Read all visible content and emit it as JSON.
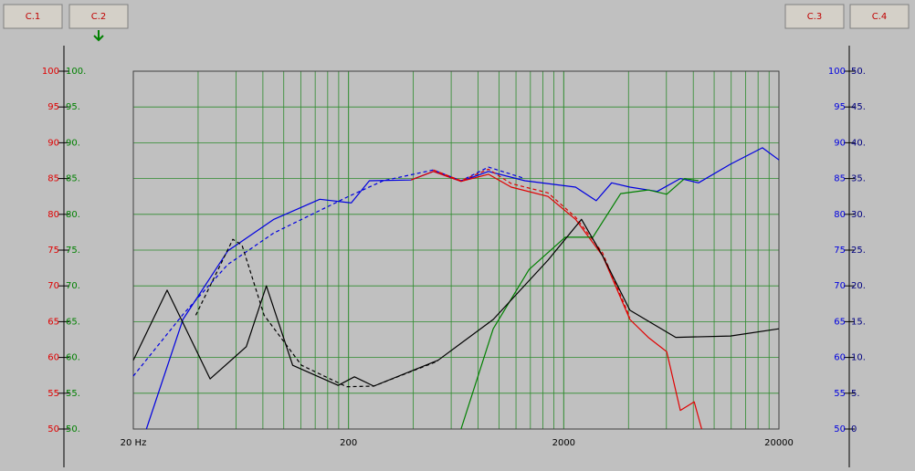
{
  "buttons": [
    "C.1",
    "C.2",
    "C.3",
    "C.4"
  ],
  "chart_data": {
    "type": "line",
    "xscale": "log",
    "grid": true,
    "xlim": [
      20,
      20000
    ],
    "xticks": [
      {
        "value": 20,
        "label": "20 Hz"
      },
      200,
      2000,
      20000
    ],
    "xgrid": [
      40,
      60,
      80,
      100,
      120,
      140,
      160,
      180,
      400,
      600,
      800,
      1000,
      1200,
      1400,
      1600,
      1800,
      4000,
      6000,
      8000,
      10000,
      12000,
      14000,
      16000,
      18000
    ],
    "ylim": [
      50,
      100
    ],
    "yticks": [
      50,
      55,
      60,
      65,
      70,
      75,
      80,
      85,
      90,
      95,
      100
    ],
    "yticks_alt": [
      {
        "value": 50,
        "label": "50."
      },
      {
        "value": 55,
        "label": "55."
      },
      {
        "value": 60,
        "label": "60."
      },
      {
        "value": 65,
        "label": "65."
      },
      {
        "value": 70,
        "label": "70."
      },
      {
        "value": 75,
        "label": "75."
      },
      {
        "value": 80,
        "label": "80."
      },
      {
        "value": 85,
        "label": "85."
      },
      {
        "value": 90,
        "label": "90."
      },
      {
        "value": 95,
        "label": "95."
      },
      {
        "value": 100,
        "label": "100."
      }
    ],
    "yticks_right": [
      50,
      55,
      60,
      65,
      70,
      75,
      80,
      85,
      90,
      95,
      100
    ],
    "y2lim": [
      0,
      50
    ],
    "y2ticks": [
      0,
      {
        "value": 5,
        "label": "5."
      },
      {
        "value": 10,
        "label": "10."
      },
      {
        "value": 15,
        "label": "15."
      },
      {
        "value": 20,
        "label": "20."
      },
      {
        "value": 25,
        "label": "25."
      },
      {
        "value": 30,
        "label": "30."
      },
      {
        "value": 35,
        "label": "35."
      },
      {
        "value": 40,
        "label": "40."
      },
      {
        "value": 45,
        "label": "45."
      },
      {
        "value": 50,
        "label": "50."
      }
    ],
    "series": [
      {
        "color": "#0000e0",
        "dashed": false,
        "x": [
          23,
          34,
          55,
          90,
          147,
          206,
          250,
          390,
          496,
          667,
          894,
          1320,
          2270,
          2830,
          3340,
          4060,
          5440,
          6960,
          8460,
          11900,
          16750,
          20000
        ],
        "values": [
          50,
          65.3,
          74.9,
          79.3,
          82.1,
          81.6,
          84.7,
          84.8,
          86,
          84.6,
          86,
          84.7,
          83.8,
          81.9,
          84.4,
          83.8,
          83.2,
          85,
          84.4,
          87,
          89.3,
          87.6
        ]
      },
      {
        "color": "#0000e0",
        "dashed": true,
        "x": [
          20,
          34,
          55,
          90,
          200,
          290,
          496,
          667,
          894,
          1320
        ],
        "values": [
          57.4,
          66,
          73,
          77.4,
          82.5,
          84.7,
          86.2,
          84.7,
          86.6,
          85
        ]
      },
      {
        "color": "#e00000",
        "dashed": false,
        "x": [
          390,
          496,
          667,
          894,
          1140,
          1690,
          2270,
          3030,
          4060,
          4940,
          6020,
          6960,
          8080,
          8750
        ],
        "values": [
          84.8,
          86,
          84.6,
          85.6,
          83.8,
          82.5,
          79.3,
          74.2,
          65.3,
          62.8,
          60.8,
          52.6,
          53.8,
          50
        ]
      },
      {
        "color": "#e00000",
        "dashed": true,
        "x": [
          496,
          667,
          894,
          1140,
          1690,
          2270,
          3030,
          4060
        ],
        "values": [
          86.2,
          84.7,
          86.3,
          84.3,
          83,
          79.6,
          74.6,
          65.6
        ]
      },
      {
        "color": "#008000",
        "dashed": false,
        "x": [
          667,
          940,
          1380,
          2030,
          2730,
          3680,
          4940,
          6020,
          7300,
          8460
        ],
        "values": [
          50,
          64,
          72.3,
          76.8,
          76.8,
          82.9,
          83.4,
          82.8,
          85,
          84.7
        ]
      },
      {
        "color": "#000000",
        "dashed": false,
        "axis": "y2",
        "x": [
          20,
          28.7,
          45.5,
          67,
          83,
          110,
          179,
          213,
          262,
          521,
          940,
          1690,
          2420,
          3030,
          4060,
          6630,
          11900,
          20000
        ],
        "values": [
          9.6,
          19.4,
          7,
          11.5,
          20,
          8.9,
          6.1,
          7.3,
          6,
          9.6,
          15.3,
          23.6,
          29.3,
          24.2,
          16.6,
          12.8,
          13,
          14
        ]
      },
      {
        "color": "#000000",
        "dashed": true,
        "axis": "y2",
        "x": [
          39,
          58,
          64,
          81,
          121,
          196,
          262,
          521
        ],
        "values": [
          15.9,
          26.5,
          25.7,
          15.9,
          8.9,
          5.9,
          6,
          9.5
        ]
      }
    ]
  }
}
